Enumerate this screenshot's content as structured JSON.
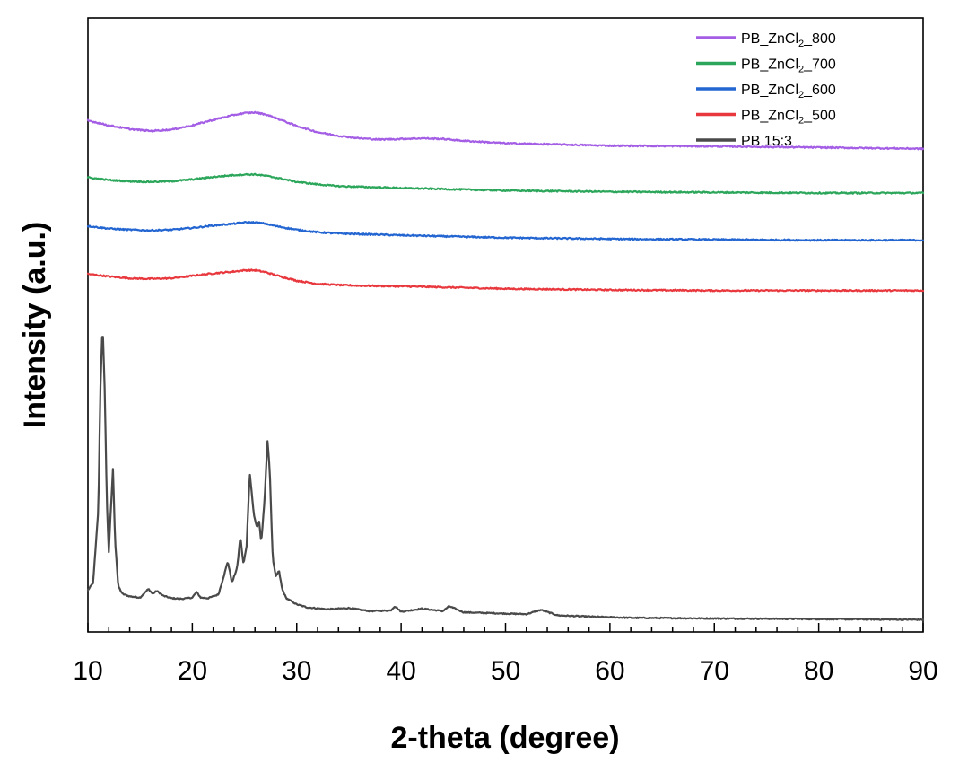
{
  "chart_data": {
    "type": "line",
    "title": "",
    "xlabel": "2-theta (degree)",
    "ylabel": "Intensity (a.u.)",
    "xlim": [
      10,
      90
    ],
    "ylim": [
      0,
      100
    ],
    "y_ticks_shown": false,
    "x_ticks": [
      10,
      20,
      30,
      40,
      50,
      60,
      70,
      80,
      90
    ],
    "x_tick_labels": [
      "10",
      "20",
      "30",
      "40",
      "50",
      "60",
      "70",
      "80",
      "90"
    ],
    "grid": false,
    "legend_position": "top-right",
    "series": [
      {
        "name": "PB_ZnCl2_800",
        "legend": {
          "base": "PB_ZnCl",
          "sub": "2",
          "suffix": "_800"
        },
        "color": "#A45EE5",
        "x": [
          10,
          12,
          14,
          16,
          18,
          20,
          22,
          24,
          25,
          26,
          27,
          28,
          30,
          32,
          34,
          36,
          38,
          40,
          42,
          44,
          46,
          48,
          50,
          55,
          60,
          70,
          80,
          90
        ],
        "y": [
          83.3,
          82.5,
          81.9,
          81.6,
          81.8,
          82.5,
          83.4,
          84.2,
          84.5,
          84.6,
          84.3,
          83.7,
          82.4,
          81.4,
          80.8,
          80.4,
          80.2,
          80.3,
          80.4,
          80.3,
          80.0,
          79.8,
          79.6,
          79.4,
          79.2,
          79.1,
          78.9,
          78.7
        ]
      },
      {
        "name": "PB_ZnCl2_700",
        "legend": {
          "base": "PB_ZnCl",
          "sub": "2",
          "suffix": "_700"
        },
        "color": "#2CA65A",
        "x": [
          10,
          12,
          14,
          16,
          18,
          20,
          22,
          24,
          25,
          26,
          27,
          28,
          30,
          32,
          34,
          36,
          40,
          45,
          50,
          60,
          70,
          80,
          90
        ],
        "y": [
          74.0,
          73.6,
          73.4,
          73.3,
          73.4,
          73.7,
          74.1,
          74.4,
          74.5,
          74.5,
          74.3,
          74.0,
          73.3,
          72.9,
          72.6,
          72.5,
          72.3,
          72.1,
          71.9,
          71.7,
          71.6,
          71.5,
          71.5
        ]
      },
      {
        "name": "PB_ZnCl2_600",
        "legend": {
          "base": "PB_ZnCl",
          "sub": "2",
          "suffix": "_600"
        },
        "color": "#2365D1",
        "x": [
          10,
          12,
          14,
          16,
          18,
          20,
          22,
          24,
          25,
          26,
          27,
          28,
          30,
          32,
          34,
          36,
          40,
          45,
          50,
          60,
          70,
          80,
          90
        ],
        "y": [
          66.1,
          65.7,
          65.5,
          65.4,
          65.5,
          65.8,
          66.2,
          66.5,
          66.7,
          66.7,
          66.5,
          66.1,
          65.5,
          65.1,
          64.9,
          64.8,
          64.6,
          64.4,
          64.2,
          64.0,
          63.9,
          63.8,
          63.8
        ]
      },
      {
        "name": "PB_ZnCl2_500",
        "legend": {
          "base": "PB_ZnCl",
          "sub": "2",
          "suffix": "_500"
        },
        "color": "#E8383D",
        "x": [
          10,
          12,
          14,
          16,
          18,
          20,
          22,
          24,
          25,
          26,
          27,
          28,
          30,
          32,
          34,
          36,
          40,
          45,
          50,
          60,
          70,
          80,
          90
        ],
        "y": [
          58.3,
          57.9,
          57.6,
          57.5,
          57.6,
          58.0,
          58.4,
          58.7,
          58.9,
          58.9,
          58.6,
          58.1,
          57.2,
          56.7,
          56.5,
          56.4,
          56.3,
          56.1,
          55.9,
          55.7,
          55.6,
          55.6,
          55.6
        ]
      },
      {
        "name": "PB 15:3",
        "legend": {
          "base": "PB 15:3",
          "sub": "",
          "suffix": ""
        },
        "color": "#4A4A4A",
        "x": [
          10,
          10.5,
          11,
          11.2,
          11.4,
          11.6,
          11.8,
          12.0,
          12.2,
          12.4,
          12.6,
          12.9,
          13.3,
          14,
          15,
          15.8,
          16.2,
          16.6,
          17.2,
          18,
          19,
          20,
          20.4,
          20.8,
          21.5,
          22.5,
          23.0,
          23.4,
          23.8,
          24.3,
          24.6,
          24.9,
          25.2,
          25.5,
          25.9,
          26.2,
          26.4,
          26.6,
          26.9,
          27.2,
          27.4,
          27.7,
          28.0,
          28.3,
          28.6,
          29,
          30,
          31,
          33,
          35,
          37,
          39,
          39.4,
          40,
          42,
          44,
          44.6,
          46,
          48,
          50,
          52,
          53.4,
          55,
          58,
          62,
          70,
          80,
          90
        ],
        "y": [
          6.8,
          8.0,
          20.0,
          40.0,
          50.0,
          40.0,
          22.0,
          13.0,
          20.0,
          26.5,
          15.0,
          7.5,
          6.2,
          5.8,
          5.6,
          7.0,
          6.2,
          6.7,
          5.9,
          5.5,
          5.4,
          5.6,
          6.5,
          5.6,
          5.5,
          6.1,
          9.0,
          11.5,
          8.0,
          10.5,
          15.5,
          11.0,
          14.0,
          26.0,
          19.0,
          17.0,
          18.0,
          14.5,
          21.0,
          31.0,
          27.0,
          12.0,
          9.0,
          10.0,
          7.0,
          5.5,
          4.5,
          4.0,
          3.7,
          3.9,
          3.4,
          3.5,
          4.2,
          3.3,
          3.8,
          3.4,
          4.2,
          3.2,
          3.1,
          3.0,
          2.9,
          3.6,
          2.7,
          2.5,
          2.3,
          2.2,
          2.1,
          2.0
        ]
      }
    ]
  }
}
